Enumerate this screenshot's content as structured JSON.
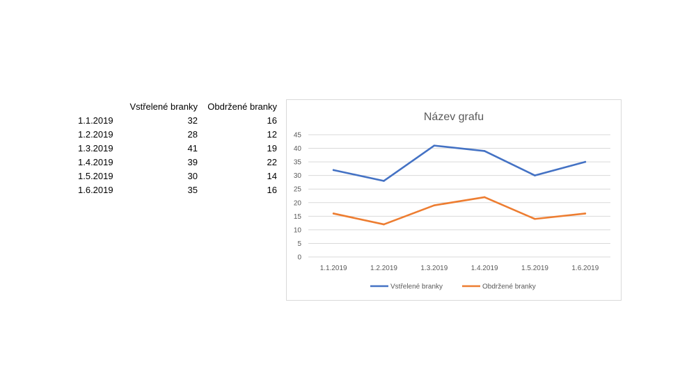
{
  "table": {
    "headers": [
      "",
      "Vstřelené branky",
      "Obdržené branky"
    ],
    "rows": [
      [
        "1.1.2019",
        "32",
        "16"
      ],
      [
        "1.2.2019",
        "28",
        "12"
      ],
      [
        "1.3.2019",
        "41",
        "19"
      ],
      [
        "1.4.2019",
        "39",
        "22"
      ],
      [
        "1.5.2019",
        "30",
        "14"
      ],
      [
        "1.6.2019",
        "35",
        "16"
      ]
    ]
  },
  "chart_data": {
    "type": "line",
    "title": "Název grafu",
    "categories": [
      "1.1.2019",
      "1.2.2019",
      "1.3.2019",
      "1.4.2019",
      "1.5.2019",
      "1.6.2019"
    ],
    "series": [
      {
        "name": "Vstřelené branky",
        "values": [
          32,
          28,
          41,
          39,
          30,
          35
        ],
        "color": "#4472c4"
      },
      {
        "name": "Obdržené branky",
        "values": [
          16,
          12,
          19,
          22,
          14,
          16
        ],
        "color": "#ed7d31"
      }
    ],
    "ylim": [
      0,
      45
    ],
    "yticks": [
      0,
      5,
      10,
      15,
      20,
      25,
      30,
      35,
      40,
      45
    ],
    "grid": true,
    "legend": "bottom"
  }
}
